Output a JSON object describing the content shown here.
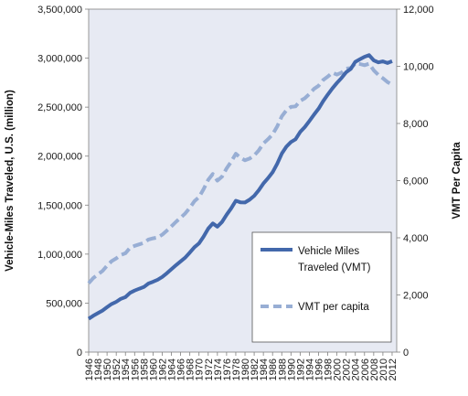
{
  "chart_data": {
    "type": "line",
    "title": "",
    "xlabel": "",
    "ylabel": "Vehicle-Miles Traveled, U.S. (million)",
    "y2label": "VMT Per Capita",
    "xlim": [
      1946,
      2013
    ],
    "ylim": [
      0,
      3500000
    ],
    "y2lim": [
      0,
      12000
    ],
    "grid": false,
    "legend_position": "bottom-right",
    "background": "#e7eaf3",
    "x_tick_labels": [
      "1946",
      "1948",
      "1950",
      "1952",
      "1954",
      "1956",
      "1958",
      "1960",
      "1962",
      "1964",
      "1966",
      "1968",
      "1970",
      "1972",
      "1974",
      "1976",
      "1978",
      "1980",
      "1982",
      "1984",
      "1986",
      "1988",
      "1990",
      "1992",
      "1994",
      "1996",
      "1998",
      "2000",
      "2002",
      "2004",
      "2006",
      "2008",
      "2010",
      "2012"
    ],
    "y_tick_labels": [
      "0",
      "500,000",
      "1,000,000",
      "1,500,000",
      "2,000,000",
      "2,500,000",
      "3,000,000",
      "3,500,000"
    ],
    "y2_tick_labels": [
      "0",
      "2,000",
      "4,000",
      "6,000",
      "8,000",
      "10,000",
      "12,000"
    ],
    "x": [
      1946,
      1947,
      1948,
      1949,
      1950,
      1951,
      1952,
      1953,
      1954,
      1955,
      1956,
      1957,
      1958,
      1959,
      1960,
      1961,
      1962,
      1963,
      1964,
      1965,
      1966,
      1967,
      1968,
      1969,
      1970,
      1971,
      1972,
      1973,
      1974,
      1975,
      1976,
      1977,
      1978,
      1979,
      1980,
      1981,
      1982,
      1983,
      1984,
      1985,
      1986,
      1987,
      1988,
      1989,
      1990,
      1991,
      1992,
      1993,
      1994,
      1995,
      1996,
      1997,
      1998,
      1999,
      2000,
      2001,
      2002,
      2003,
      2004,
      2005,
      2006,
      2007,
      2008,
      2009,
      2010,
      2011,
      2012
    ],
    "series": [
      {
        "name": "Vehicle Miles Traveled (VMT)",
        "axis": "left",
        "color": "#4368ab",
        "style": "solid",
        "values": [
          340000,
          371000,
          398000,
          424000,
          458000,
          491000,
          513000,
          544000,
          561000,
          605000,
          628000,
          647000,
          665000,
          700000,
          718000,
          738000,
          767000,
          805000,
          846000,
          888000,
          926000,
          964000,
          1016000,
          1071000,
          1110000,
          1179000,
          1260000,
          1313000,
          1281000,
          1328000,
          1402000,
          1467000,
          1545000,
          1529000,
          1527000,
          1555000,
          1595000,
          1652000,
          1720000,
          1775000,
          1835000,
          1921000,
          2026000,
          2096000,
          2144000,
          2172000,
          2247000,
          2296000,
          2358000,
          2423000,
          2484000,
          2560000,
          2628000,
          2691000,
          2747000,
          2797000,
          2856000,
          2890000,
          2962000,
          2989000,
          3014000,
          3031000,
          2977000,
          2957000,
          2967000,
          2950000,
          2969000
        ]
      },
      {
        "name": "VMT per capita",
        "axis": "right",
        "color": "#98aed4",
        "style": "dashed",
        "values": [
          2410,
          2590,
          2720,
          2840,
          3020,
          3180,
          3280,
          3400,
          3460,
          3650,
          3720,
          3770,
          3820,
          3940,
          3980,
          4010,
          4110,
          4250,
          4400,
          4560,
          4700,
          4850,
          5050,
          5280,
          5420,
          5700,
          6030,
          6230,
          6000,
          6140,
          6430,
          6660,
          6940,
          6800,
          6710,
          6770,
          6880,
          7060,
          7300,
          7450,
          7620,
          7890,
          8250,
          8460,
          8580,
          8600,
          8790,
          8880,
          9030,
          9210,
          9320,
          9520,
          9640,
          9780,
          9710,
          9780,
          9920,
          9940,
          10100,
          10080,
          10040,
          10090,
          9860,
          9700,
          9580,
          9450,
          9360
        ]
      }
    ]
  }
}
